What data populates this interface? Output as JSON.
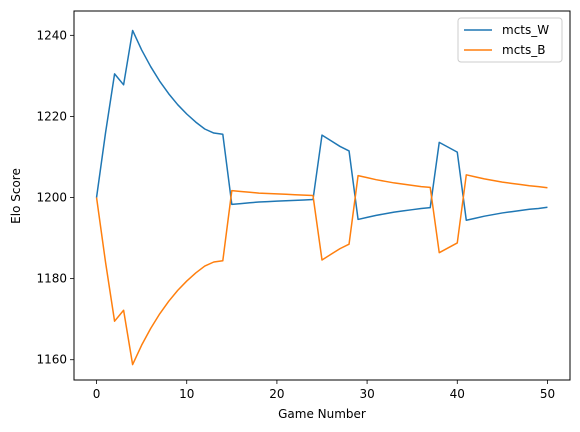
{
  "chart_data": {
    "type": "line",
    "title": "",
    "xlabel": "Game Number",
    "ylabel": "Elo Score",
    "xlim": [
      -2.5,
      52.5
    ],
    "ylim": [
      1155,
      1246
    ],
    "xticks": [
      0,
      10,
      20,
      30,
      40,
      50
    ],
    "yticks": [
      1160,
      1180,
      1200,
      1220,
      1240
    ],
    "grid": false,
    "legend_position": "top-right",
    "series": [
      {
        "name": "mcts_W",
        "color": "#1f77b4",
        "x": [
          0,
          1,
          2,
          3,
          4,
          5,
          6,
          7,
          8,
          9,
          10,
          11,
          12,
          13,
          14,
          15,
          16,
          17,
          18,
          19,
          20,
          21,
          22,
          23,
          24,
          25,
          26,
          27,
          28,
          29,
          30,
          31,
          32,
          33,
          34,
          35,
          36,
          37,
          38,
          39,
          40,
          41,
          42,
          43,
          44,
          45,
          46,
          47,
          48,
          49,
          50
        ],
        "y": [
          1200,
          1216,
          1230.5,
          1227.8,
          1241.2,
          1236.4,
          1232.3,
          1228.7,
          1225.6,
          1222.9,
          1220.6,
          1218.6,
          1216.9,
          1215.9,
          1215.6,
          1198.3,
          1198.5,
          1198.7,
          1198.9,
          1199.0,
          1199.1,
          1199.2,
          1199.3,
          1199.4,
          1199.5,
          1215.4,
          1214.0,
          1212.6,
          1211.5,
          1194.6,
          1195.1,
          1195.6,
          1196.0,
          1196.4,
          1196.7,
          1197.0,
          1197.3,
          1197.5,
          1213.6,
          1212.4,
          1211.2,
          1194.4,
          1194.9,
          1195.4,
          1195.8,
          1196.2,
          1196.5,
          1196.8,
          1197.1,
          1197.3,
          1197.6
        ]
      },
      {
        "name": "mcts_B",
        "color": "#ff7f0e",
        "x": [
          0,
          1,
          2,
          3,
          4,
          5,
          6,
          7,
          8,
          9,
          10,
          11,
          12,
          13,
          14,
          15,
          16,
          17,
          18,
          19,
          20,
          21,
          22,
          23,
          24,
          25,
          26,
          27,
          28,
          29,
          30,
          31,
          32,
          33,
          34,
          35,
          36,
          37,
          38,
          39,
          40,
          41,
          42,
          43,
          44,
          45,
          46,
          47,
          48,
          49,
          50
        ],
        "y": [
          1200,
          1184,
          1169.5,
          1172.2,
          1158.8,
          1163.6,
          1167.7,
          1171.3,
          1174.4,
          1177.1,
          1179.4,
          1181.4,
          1183.1,
          1184.1,
          1184.4,
          1201.7,
          1201.5,
          1201.3,
          1201.1,
          1201.0,
          1200.9,
          1200.8,
          1200.7,
          1200.6,
          1200.5,
          1184.6,
          1186.0,
          1187.4,
          1188.5,
          1205.4,
          1204.9,
          1204.4,
          1204.0,
          1203.6,
          1203.3,
          1203.0,
          1202.7,
          1202.5,
          1186.4,
          1187.6,
          1188.8,
          1205.6,
          1205.1,
          1204.6,
          1204.2,
          1203.8,
          1203.5,
          1203.2,
          1202.9,
          1202.7,
          1202.4
        ]
      }
    ]
  }
}
